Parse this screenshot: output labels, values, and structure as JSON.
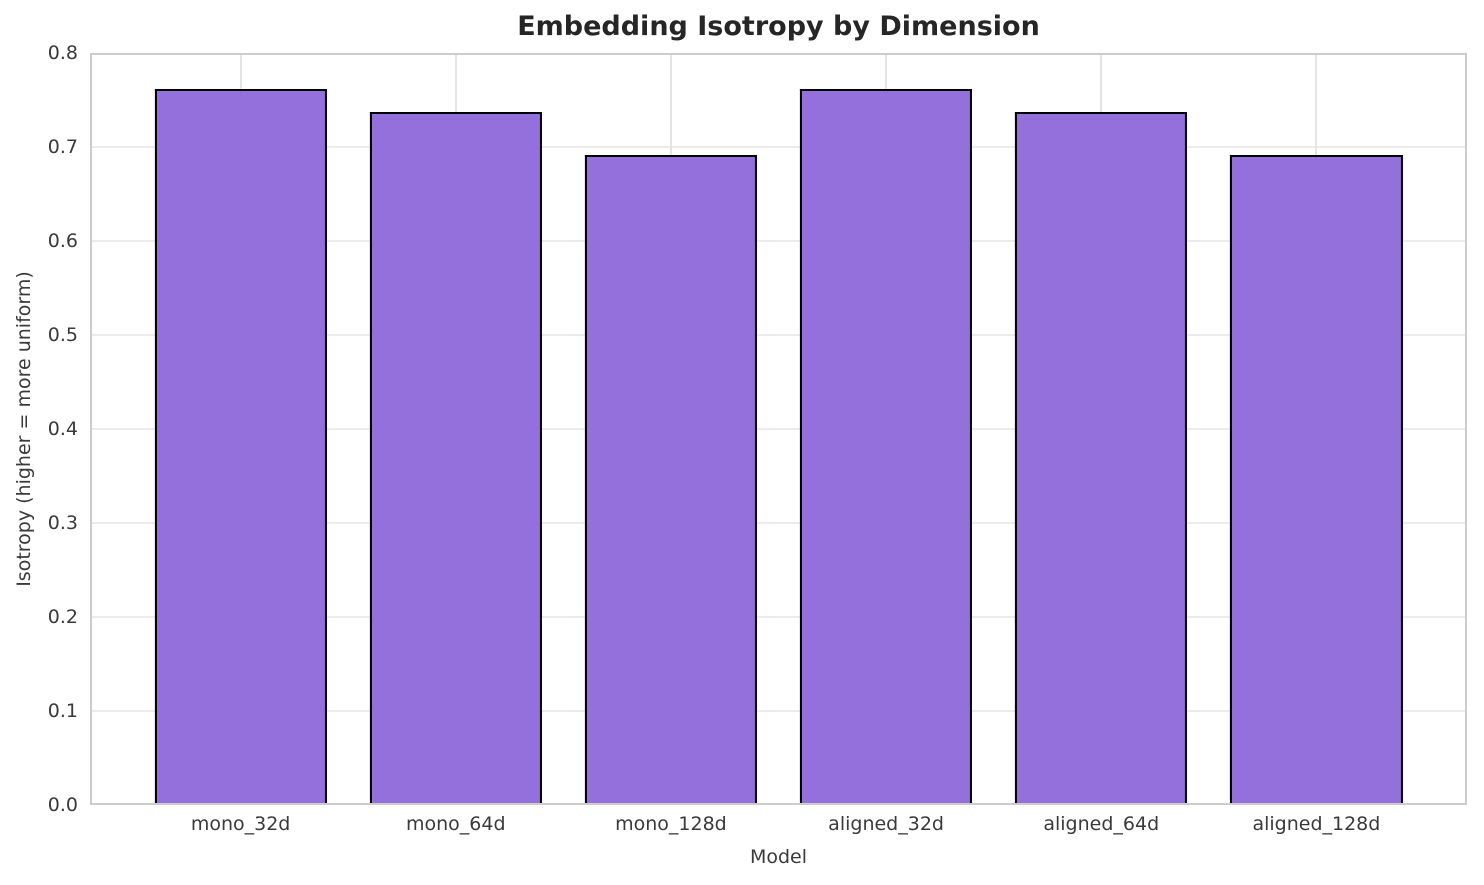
{
  "chart_data": {
    "type": "bar",
    "title": "Embedding Isotropy by Dimension",
    "xlabel": "Model",
    "ylabel": "Isotropy (higher = more uniform)",
    "categories": [
      "mono_32d",
      "mono_64d",
      "mono_128d",
      "aligned_32d",
      "aligned_64d",
      "aligned_128d"
    ],
    "values": [
      0.762,
      0.737,
      0.691,
      0.762,
      0.737,
      0.691
    ],
    "ylim": [
      0.0,
      0.8
    ],
    "yticks": [
      "0.0",
      "0.1",
      "0.2",
      "0.3",
      "0.4",
      "0.5",
      "0.6",
      "0.7",
      "0.8"
    ],
    "grid": true,
    "legend_position": "none",
    "bar_color": "#9370DB",
    "bar_edge_color": "#000000",
    "grid_color": "#ebebeb",
    "spine_color": "#cccccc",
    "title_color": "#262626",
    "tick_label_color": "#3a3a3a",
    "bar_width_frac": 0.8,
    "x_edge_pad": 0.7
  }
}
